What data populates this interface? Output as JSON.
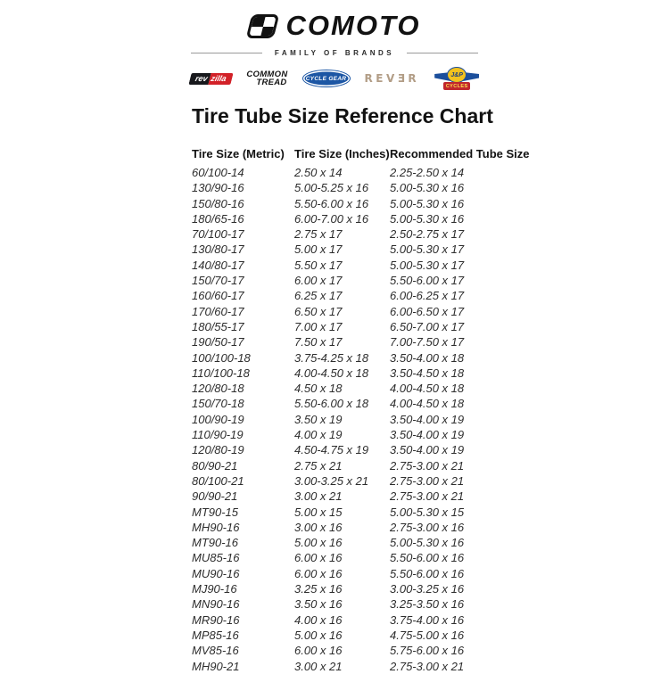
{
  "header": {
    "logo": {
      "brand": "COMOTO"
    },
    "family_label": "FAMILY OF BRANDS",
    "brands": {
      "revzilla": {
        "name": "RevZilla",
        "part1": "rev",
        "part2": "zilla"
      },
      "common_tread": {
        "name": "Common Tread",
        "line1": "COMMON",
        "line2": "TREAD"
      },
      "cycle_gear": {
        "name": "Cycle Gear",
        "label": "CYCLE GEAR"
      },
      "rever": {
        "name": "REVER",
        "label": "REVƎR"
      },
      "jp_cycles": {
        "name": "J&P Cycles",
        "top": "J&P",
        "bottom": "CYCLES"
      }
    }
  },
  "page_title": "Tire Tube Size Reference Chart",
  "table": {
    "columns": [
      "Tire Size (Metric)",
      "Tire Size (Inches)",
      "Recommended Tube Size"
    ],
    "rows": [
      [
        "60/100-14",
        "2.50 x 14",
        "2.25-2.50 x 14"
      ],
      [
        "130/90-16",
        "5.00-5.25 x 16",
        "5.00-5.30 x 16"
      ],
      [
        "150/80-16",
        "5.50-6.00 x 16",
        "5.00-5.30 x 16"
      ],
      [
        "180/65-16",
        "6.00-7.00 x 16",
        "5.00-5.30 x 16"
      ],
      [
        "70/100-17",
        "2.75 x 17",
        "2.50-2.75 x 17"
      ],
      [
        "130/80-17",
        "5.00 x 17",
        "5.00-5.30 x 17"
      ],
      [
        "140/80-17",
        "5.50 x 17",
        "5.00-5.30 x 17"
      ],
      [
        "150/70-17",
        "6.00 x 17",
        "5.50-6.00 x 17"
      ],
      [
        "160/60-17",
        "6.25 x 17",
        "6.00-6.25 x 17"
      ],
      [
        "170/60-17",
        "6.50 x 17",
        "6.00-6.50 x 17"
      ],
      [
        "180/55-17",
        "7.00 x 17",
        "6.50-7.00 x 17"
      ],
      [
        "190/50-17",
        "7.50 x 17",
        "7.00-7.50 x 17"
      ],
      [
        "100/100-18",
        "3.75-4.25 x 18",
        "3.50-4.00 x 18"
      ],
      [
        "110/100-18",
        "4.00-4.50 x 18",
        "3.50-4.50 x 18"
      ],
      [
        "120/80-18",
        "4.50 x 18",
        "4.00-4.50 x 18"
      ],
      [
        "150/70-18",
        "5.50-6.00 x 18",
        "4.00-4.50 x 18"
      ],
      [
        "100/90-19",
        "3.50 x 19",
        "3.50-4.00 x 19"
      ],
      [
        "110/90-19",
        "4.00 x 19",
        "3.50-4.00 x 19"
      ],
      [
        "120/80-19",
        "4.50-4.75 x 19",
        "3.50-4.00 x 19"
      ],
      [
        "80/90-21",
        "2.75 x 21",
        "2.75-3.00 x 21"
      ],
      [
        "80/100-21",
        "3.00-3.25 x 21",
        "2.75-3.00 x 21"
      ],
      [
        "90/90-21",
        "3.00 x 21",
        "2.75-3.00 x 21"
      ],
      [
        "MT90-15",
        "5.00 x 15",
        "5.00-5.30 x 15"
      ],
      [
        "MH90-16",
        "3.00 x 16",
        "2.75-3.00 x 16"
      ],
      [
        "MT90-16",
        "5.00 x 16",
        "5.00-5.30 x 16"
      ],
      [
        "MU85-16",
        "6.00 x 16",
        "5.50-6.00 x 16"
      ],
      [
        "MU90-16",
        "6.00 x 16",
        "5.50-6.00 x 16"
      ],
      [
        "MJ90-16",
        "3.25 x 16",
        "3.00-3.25 x 16"
      ],
      [
        "MN90-16",
        "3.50 x 16",
        "3.25-3.50 x 16"
      ],
      [
        "MR90-16",
        "4.00 x 16",
        "3.75-4.00 x 16"
      ],
      [
        "MP85-16",
        "5.00 x 16",
        "4.75-5.00 x 16"
      ],
      [
        "MV85-16",
        "6.00 x 16",
        "5.75-6.00 x 16"
      ],
      [
        "MH90-21",
        "3.00 x 21",
        "2.75-3.00 x 21"
      ]
    ]
  },
  "colors": {
    "logo_black": "#121212",
    "revzilla_red": "#d22128",
    "cycle_gear_blue": "#1c56a4",
    "rever_tan": "#b29d86",
    "jp_blue": "#1c4f9c",
    "jp_yellow": "#f2c21e",
    "jp_red": "#c1272d",
    "divider_gray": "#9a9a9a"
  }
}
